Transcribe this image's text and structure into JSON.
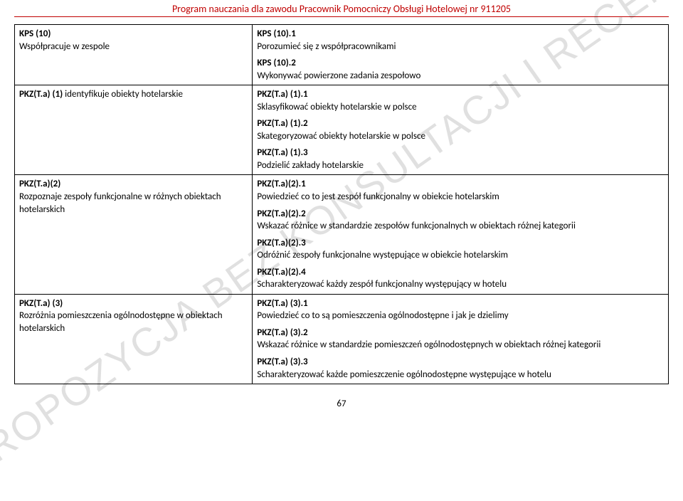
{
  "header": "Program nauczania dla zawodu Pracownik Pomocniczy Obsługi Hotelowej nr 911205",
  "watermark": "PROPOZYCJA BEZ KONSULTACJI I RECENZJI",
  "pagenum": "67",
  "rows": [
    {
      "left": {
        "code": "KPS (10)",
        "text": "Współpracuje w zespole"
      },
      "right": [
        {
          "code": "KPS (10).1",
          "text": "Porozumieć się z współpracownikami"
        },
        {
          "code": "KPS (10).2",
          "text": "Wykonywać powierzone zadania zespołowo"
        }
      ]
    },
    {
      "left": {
        "code": "PKZ(T.a) (1)",
        "text": " identyfikuje obiekty hotelarskie",
        "inline": true
      },
      "right": [
        {
          "code": "PKZ(T.a) (1).1",
          "text": "Sklasyfikować obiekty hotelarskie w polsce"
        },
        {
          "code": "PKZ(T.a) (1).2",
          "text": "Skategoryzować obiekty hotelarskie w polsce"
        },
        {
          "code": "PKZ(T.a) (1).3",
          "text": "Podzielić zakłady hotelarskie"
        }
      ]
    },
    {
      "left": {
        "code": "PKZ(T.a)(2)",
        "text": "Rozpoznaje zespoły funkcjonalne  w różnych obiektach hotelarskich"
      },
      "right": [
        {
          "code": "PKZ(T.a)(2).1",
          "text": "Powiedzieć co to jest zespół funkcjonalny w obiekcie hotelarskim"
        },
        {
          "code": "PKZ(T.a)(2).2",
          "text": "Wskazać różnice w standardzie zespołów funkcjonalnych w obiektach różnej kategorii"
        },
        {
          "code": "PKZ(T.a)(2).3",
          "text": "Odróżnić zespoły funkcjonalne występujące  w obiekcie hotelarskim"
        },
        {
          "code": "PKZ(T.a)(2).4",
          "text": "Scharakteryzować każdy zespół funkcjonalny występujący w hotelu"
        }
      ]
    },
    {
      "left": {
        "code": "PKZ(T.a) (3)",
        "text": "Rozróżnia pomieszczenia ogólnodostępne w obiektach hotelarskich"
      },
      "right": [
        {
          "code": "PKZ(T.a) (3).1",
          "text": "Powiedzieć co to są pomieszczenia ogólnodostępne i jak je dzielimy"
        },
        {
          "code": "PKZ(T.a) (3).2",
          "text": "Wskazać różnice w standardzie pomieszczeń ogólnodostępnych w obiektach różnej kategorii"
        },
        {
          "code": "PKZ(T.a) (3).3",
          "text": "Scharakteryzować każde pomieszczenie ogólnodostępne  występujące w hotelu"
        }
      ]
    }
  ]
}
